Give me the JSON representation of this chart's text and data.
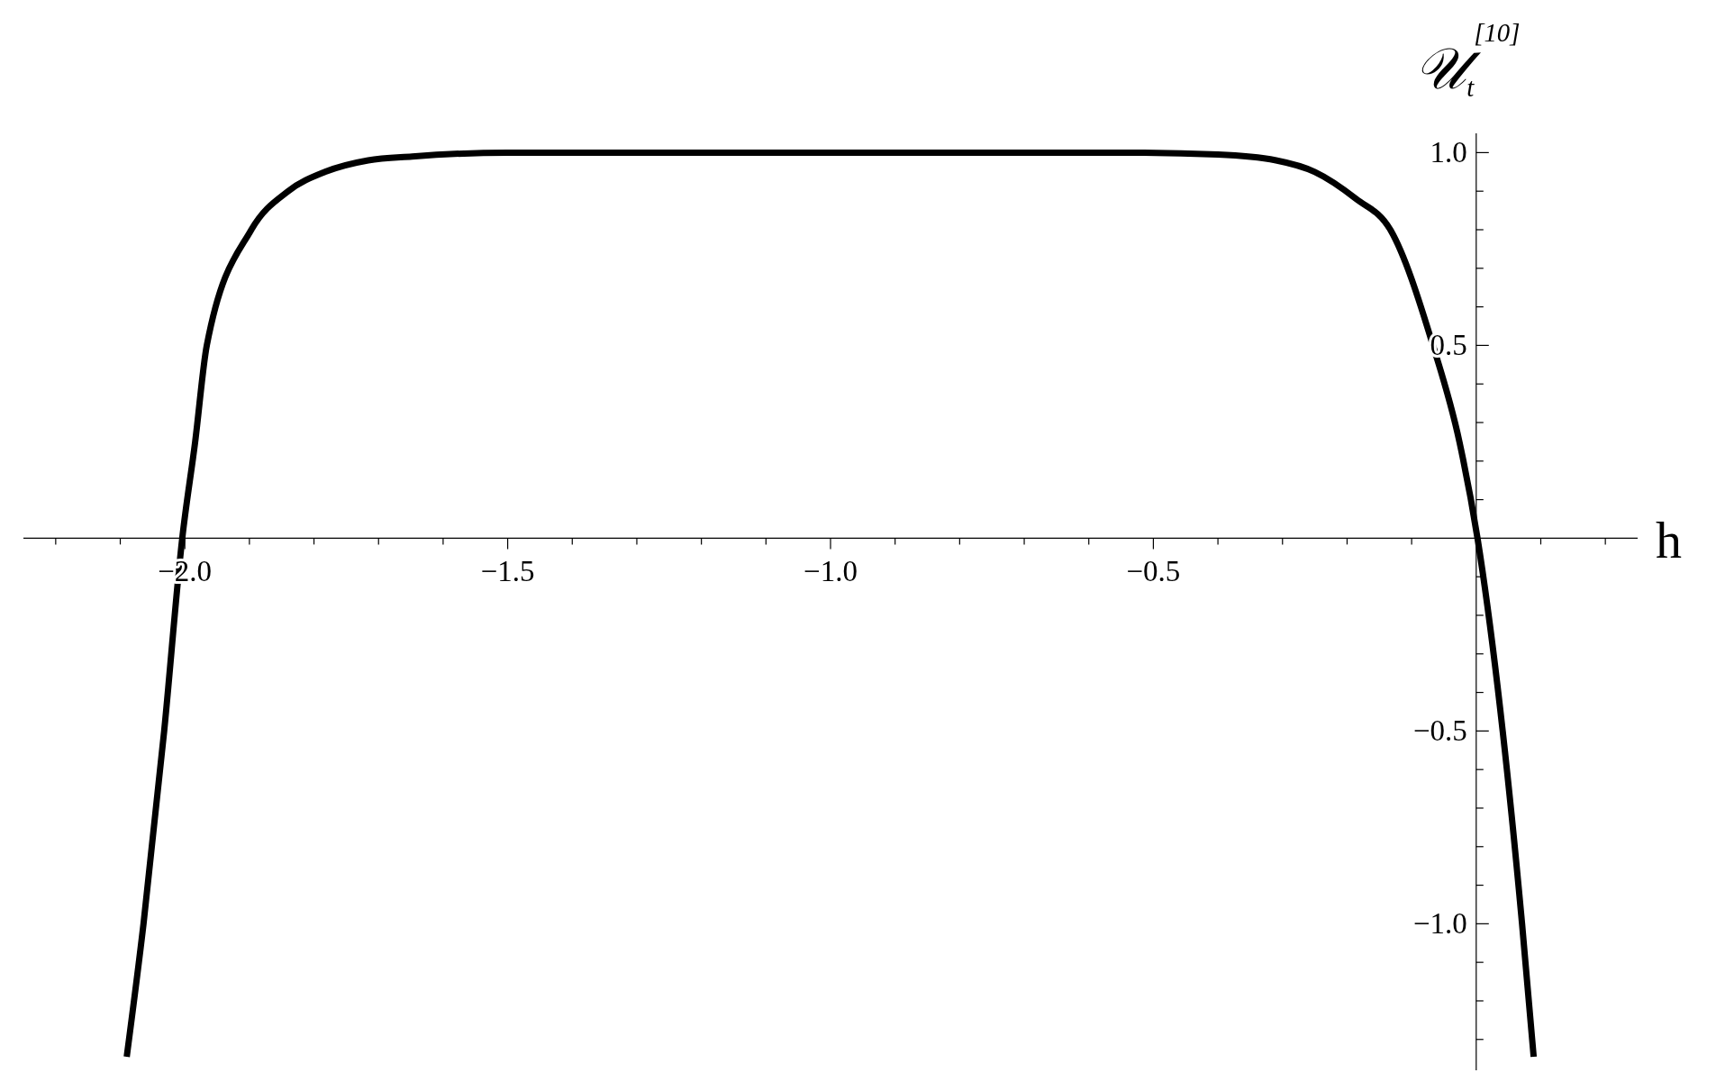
{
  "chart_data": {
    "type": "line",
    "xlabel": "h",
    "ylabel": "𝒰$_{t}$$^{[10]}$",
    "xlim": [
      -2.25,
      0.25
    ],
    "ylim": [
      -1.38,
      1.05
    ],
    "xticks": [
      {
        "value": -2.2,
        "label": null
      },
      {
        "value": -2.1,
        "label": null
      },
      {
        "value": -2,
        "label": "−2.0"
      },
      {
        "value": -1.9,
        "label": null
      },
      {
        "value": -1.8,
        "label": null
      },
      {
        "value": -1.7,
        "label": null
      },
      {
        "value": -1.6,
        "label": null
      },
      {
        "value": -1.5,
        "label": "−1.5"
      },
      {
        "value": -1.4,
        "label": null
      },
      {
        "value": -1.3,
        "label": null
      },
      {
        "value": -1.2,
        "label": null
      },
      {
        "value": -1.1,
        "label": null
      },
      {
        "value": -1,
        "label": "−1.0"
      },
      {
        "value": -0.9,
        "label": null
      },
      {
        "value": -0.8,
        "label": null
      },
      {
        "value": -0.7,
        "label": null
      },
      {
        "value": -0.6,
        "label": null
      },
      {
        "value": -0.5,
        "label": "−0.5"
      },
      {
        "value": -0.4,
        "label": null
      },
      {
        "value": -0.3,
        "label": null
      },
      {
        "value": -0.2,
        "label": null
      },
      {
        "value": -0.1,
        "label": null
      },
      {
        "value": 0.1,
        "label": null
      },
      {
        "value": 0.2,
        "label": null
      }
    ],
    "yticks": [
      {
        "value": -1.3,
        "label": null
      },
      {
        "value": -1.2,
        "label": null
      },
      {
        "value": -1.1,
        "label": null
      },
      {
        "value": -1,
        "label": "−1.0"
      },
      {
        "value": -0.9,
        "label": null
      },
      {
        "value": -0.8,
        "label": null
      },
      {
        "value": -0.7,
        "label": null
      },
      {
        "value": -0.6,
        "label": null
      },
      {
        "value": -0.5,
        "label": "−0.5"
      },
      {
        "value": -0.4,
        "label": null
      },
      {
        "value": -0.3,
        "label": null
      },
      {
        "value": -0.2,
        "label": null
      },
      {
        "value": -0.1,
        "label": null
      },
      {
        "value": 0.1,
        "label": null
      },
      {
        "value": 0.2,
        "label": null
      },
      {
        "value": 0.3,
        "label": null
      },
      {
        "value": 0.4,
        "label": null
      },
      {
        "value": 0.5,
        "label": "0.5"
      },
      {
        "value": 0.6,
        "label": null
      },
      {
        "value": 0.7,
        "label": null
      },
      {
        "value": 0.8,
        "label": null
      },
      {
        "value": 0.9,
        "label": null
      },
      {
        "value": 1,
        "label": "1.0"
      }
    ],
    "series": [
      {
        "color": "#000000",
        "x": [
          -2.09,
          -2.064,
          -2.032,
          -2.004,
          -1.984,
          -1.966,
          -1.897,
          -1.84,
          -1.783,
          -1.716,
          -1.648,
          -1.5,
          -1.0,
          -0.55,
          -0.4,
          -0.31,
          -0.25,
          -0.186,
          -0.133,
          -0.067,
          -0.026,
          0.002,
          0.041,
          0.071,
          0.089
        ],
        "values": [
          -1.345,
          -1.0,
          -0.5,
          0,
          0.25,
          0.5,
          0.8,
          0.9,
          0.95,
          0.98,
          0.99,
          1,
          1,
          1,
          0.995,
          0.98,
          0.95,
          0.88,
          0.8,
          0.5,
          0.25,
          0,
          -0.5,
          -1.0,
          -1.345
        ]
      }
    ]
  }
}
